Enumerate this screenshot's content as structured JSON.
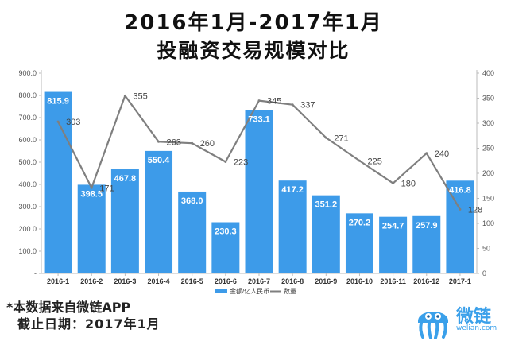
{
  "title_line1": "2016年1月-2017年1月",
  "title_line2": "投融资交易规模对比",
  "footnote": {
    "line1": "*本数据来自微链APP",
    "line2": "截止日期：2017年1月"
  },
  "logo": {
    "icon": "jellyfish-mascot-icon",
    "name": "微链",
    "url": "welian.com"
  },
  "colors": {
    "bar": "#3d9be9",
    "line": "#7f7f7f",
    "axis": "#bbbbbb"
  },
  "chart_data": {
    "type": "bar",
    "categories": [
      "2016-1",
      "2016-2",
      "2016-3",
      "2016-4",
      "2016-5",
      "2016-6",
      "2016-7",
      "2016-8",
      "2016-9",
      "2016-10",
      "2016-11",
      "2016-12",
      "2017-1"
    ],
    "series": [
      {
        "name": "金额/亿人民币",
        "type": "bar",
        "axis": "left",
        "values": [
          815.9,
          398.5,
          467.8,
          550.4,
          368.0,
          230.3,
          733.1,
          417.2,
          351.2,
          270.2,
          254.7,
          257.9,
          416.8
        ],
        "labels": [
          "815.9",
          "398.5",
          "467.8",
          "550.4",
          "368.0",
          "230.3",
          "733.1",
          "417.2",
          "351.2",
          "270.2",
          "254.7",
          "257.9",
          "416.8"
        ]
      },
      {
        "name": "数量",
        "type": "line",
        "axis": "right",
        "values": [
          303,
          171,
          355,
          263,
          260,
          223,
          345,
          337,
          271,
          225,
          180,
          240,
          128
        ],
        "labels": [
          "303",
          "171",
          "355",
          "263",
          "260",
          "223",
          "345",
          "337",
          "271",
          "225",
          "180",
          "240",
          "128"
        ]
      }
    ],
    "y_left": {
      "range": [
        0,
        900
      ],
      "ticks": [
        0,
        100,
        200,
        300,
        400,
        500,
        600,
        700,
        800,
        900
      ],
      "tick_labels": [
        "-",
        "100.0",
        "200.0",
        "300.0",
        "400.0",
        "500.0",
        "600.0",
        "700.0",
        "800.0",
        "900.0"
      ]
    },
    "y_right": {
      "range": [
        0,
        400
      ],
      "ticks": [
        0,
        50,
        100,
        150,
        200,
        250,
        300,
        350,
        400
      ],
      "tick_labels": [
        "0",
        "50",
        "100",
        "150",
        "200",
        "250",
        "300",
        "350",
        "400"
      ]
    },
    "grid": false,
    "legend_position": "bottom-center"
  }
}
